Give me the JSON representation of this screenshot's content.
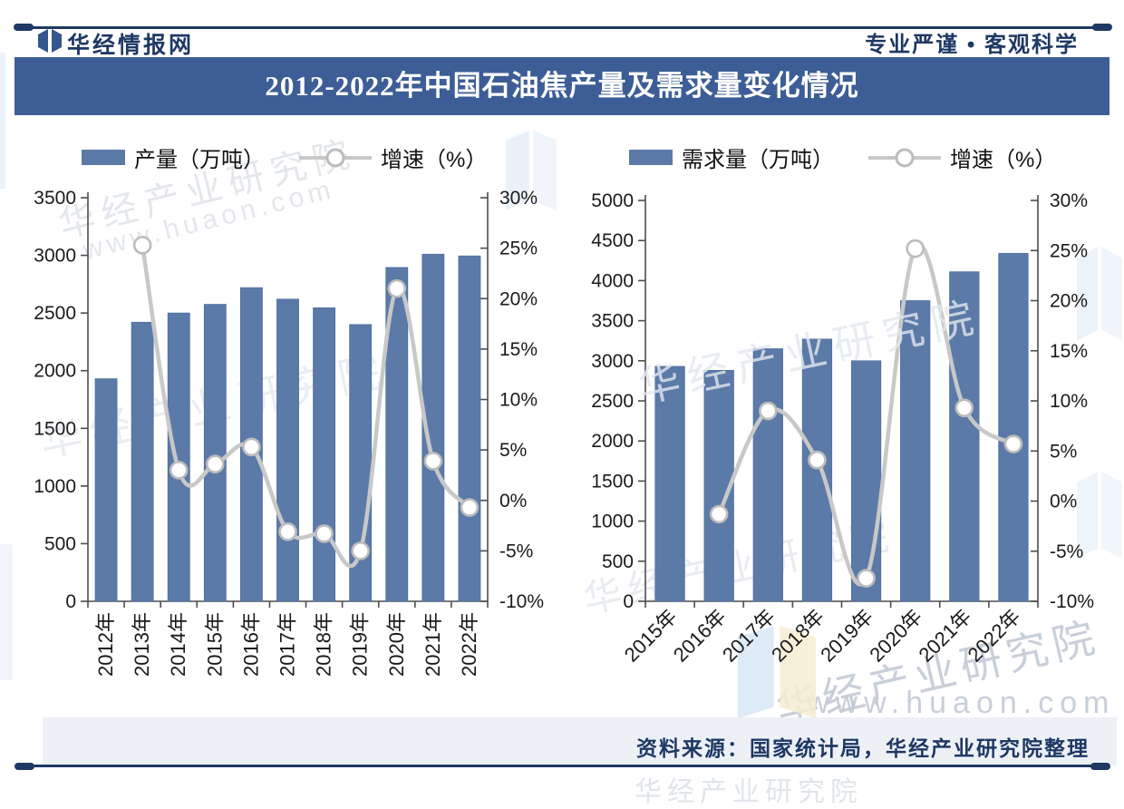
{
  "header": {
    "brand": "华经情报网",
    "slogan": "专业严谨 • 客观科学"
  },
  "title": "2012-2022年中国石油焦产量及需求量变化情况",
  "footer": {
    "source": "资料来源：国家统计局，华经产业研究院整理"
  },
  "watermarks": {
    "org": "华经产业研究院",
    "site": "www.huaon.com"
  },
  "colors": {
    "navy": "#1f3864",
    "title_band": "#3d5d96",
    "bar": "#5b7aa8",
    "line": "#c8c8c8",
    "marker_ring": "#bcbcbc",
    "axis": "#4d4d4d"
  },
  "chart_data": [
    {
      "type": "bar+line",
      "legend_position": "top",
      "grid": false,
      "categories": [
        "2012年",
        "2013年",
        "2014年",
        "2015年",
        "2016年",
        "2017年",
        "2018年",
        "2019年",
        "2020年",
        "2021年",
        "2022年"
      ],
      "series": [
        {
          "name": "产量（万吨）",
          "type": "bar",
          "axis": "left",
          "values": [
            1930,
            2420,
            2500,
            2575,
            2720,
            2620,
            2545,
            2400,
            2895,
            3010,
            2995
          ]
        },
        {
          "name": "增速（%）",
          "type": "line",
          "axis": "right",
          "values": [
            null,
            25.3,
            3.0,
            3.6,
            5.3,
            -3.1,
            -3.3,
            -5.0,
            21.0,
            3.9,
            -0.7
          ]
        }
      ],
      "left_axis": {
        "min": 0,
        "max": 3500,
        "step": 500,
        "ticks": [
          "0",
          "500",
          "1000",
          "1500",
          "2000",
          "2500",
          "3000",
          "3500"
        ]
      },
      "right_axis": {
        "min": -10,
        "max": 30,
        "step": 5,
        "ticks": [
          "-10%",
          "-5%",
          "0%",
          "5%",
          "10%",
          "15%",
          "20%",
          "25%",
          "30%"
        ]
      },
      "x_label_rotation": 90
    },
    {
      "type": "bar+line",
      "legend_position": "top",
      "grid": false,
      "categories": [
        "2015年",
        "2016年",
        "2017年",
        "2018年",
        "2019年",
        "2020年",
        "2021年",
        "2022年"
      ],
      "series": [
        {
          "name": "需求量（万吨）",
          "type": "bar",
          "axis": "left",
          "values": [
            2930,
            2880,
            3150,
            3270,
            3000,
            3750,
            4110,
            4340
          ]
        },
        {
          "name": "增速（%）",
          "type": "line",
          "axis": "right",
          "values": [
            null,
            -1.3,
            9.0,
            4.1,
            -7.7,
            25.2,
            9.3,
            5.7
          ]
        }
      ],
      "left_axis": {
        "min": 0,
        "max": 5000,
        "step": 500,
        "ticks": [
          "0",
          "500",
          "1000",
          "1500",
          "2000",
          "2500",
          "3000",
          "3500",
          "4000",
          "4500",
          "5000"
        ]
      },
      "right_axis": {
        "min": -10,
        "max": 30,
        "step": 5,
        "ticks": [
          "-10%",
          "-5%",
          "0%",
          "5%",
          "10%",
          "15%",
          "20%",
          "25%",
          "30%"
        ]
      },
      "x_label_rotation": 45
    }
  ]
}
